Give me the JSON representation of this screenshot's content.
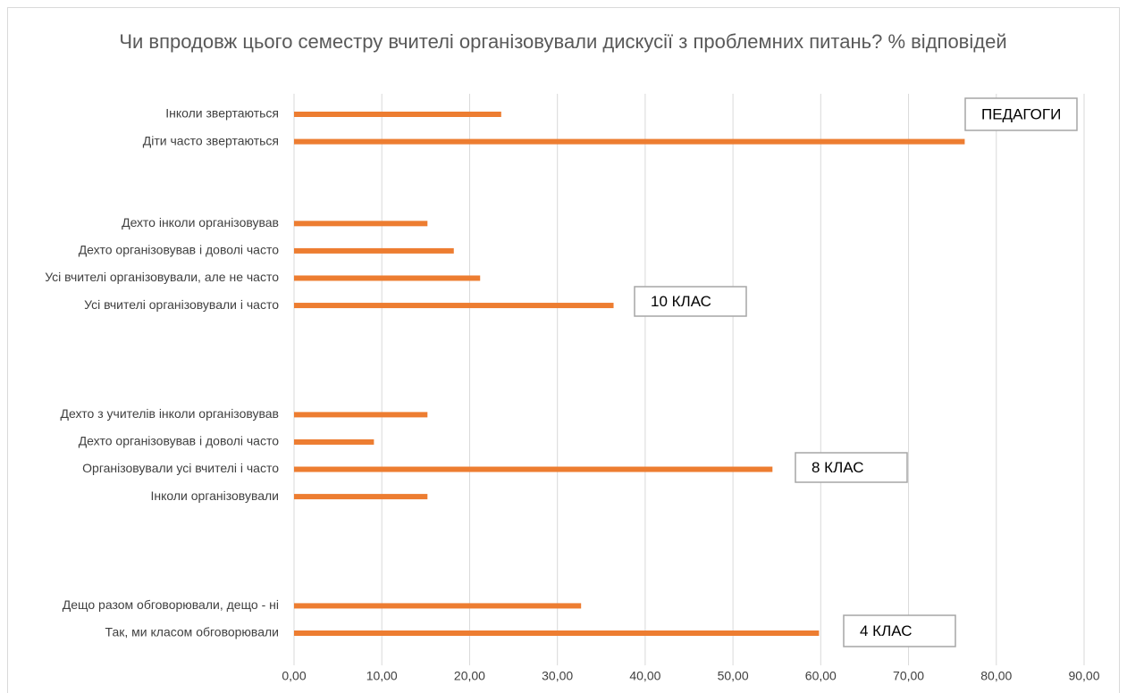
{
  "chart_data": {
    "type": "bar",
    "orientation": "horizontal",
    "title": "Чи впродовж цього семестру вчителі організовували дискусії з проблемних питань? % відповідей",
    "categories": [
      "Інколи звертаються",
      "Діти часто звертаються",
      null,
      null,
      "Дехто інколи організовував",
      "Дехто організовував і доволі часто",
      "Усі вчителі організовували, але не часто",
      "Усі вчителі організовували і часто",
      null,
      null,
      null,
      "Дехто з учителів інколи організовував",
      "Дехто організовував і доволі часто",
      "Організовували усі вчителі і часто",
      "Інколи організовували",
      null,
      null,
      null,
      "Дещо разом обговорювали, дещо - ні",
      "Так, ми класом обговорювали"
    ],
    "values": [
      23.6,
      76.4,
      null,
      null,
      15.2,
      18.2,
      21.2,
      36.4,
      null,
      null,
      null,
      15.2,
      9.1,
      54.5,
      15.2,
      null,
      null,
      null,
      32.7,
      59.8
    ],
    "color": "#ed7d31",
    "xlim": [
      0,
      90
    ],
    "xticks": [
      {
        "value": 0,
        "label": "0,00"
      },
      {
        "value": 10,
        "label": "10,00"
      },
      {
        "value": 20,
        "label": "20,00"
      },
      {
        "value": 30,
        "label": "30,00"
      },
      {
        "value": 40,
        "label": "40,00"
      },
      {
        "value": 50,
        "label": "50,00"
      },
      {
        "value": 60,
        "label": "60,00"
      },
      {
        "value": 70,
        "label": "70,00"
      },
      {
        "value": 80,
        "label": "80,00"
      },
      {
        "value": 90,
        "label": "90,00"
      }
    ],
    "grid": true,
    "annotations": [
      "ПЕДАГОГИ",
      "10 КЛАС",
      "8 КЛАС",
      "4 КЛАС"
    ]
  }
}
